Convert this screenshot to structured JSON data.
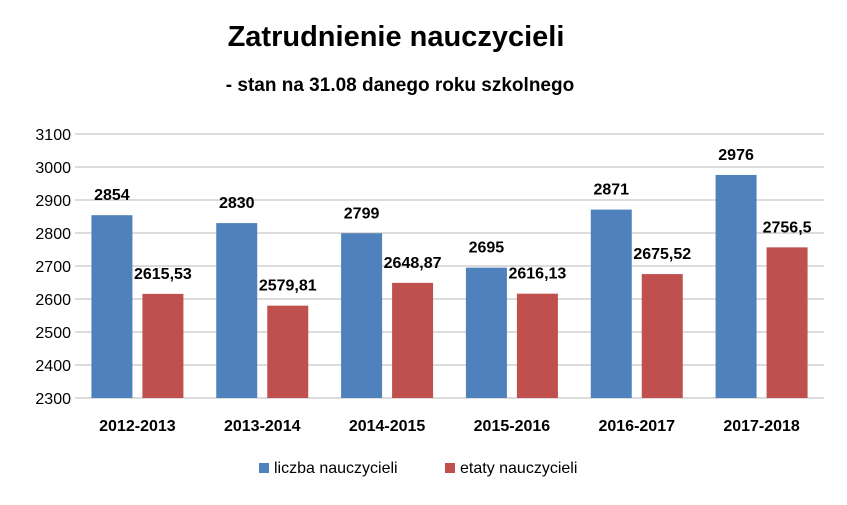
{
  "chart_data": {
    "type": "bar",
    "title": "Zatrudnienie nauczycieli",
    "subtitle": "- stan na 31.08 danego roku szkolnego",
    "categories": [
      "2012-2013",
      "2013-2014",
      "2014-2015",
      "2015-2016",
      "2016-2017",
      "2017-2018"
    ],
    "series": [
      {
        "name": "liczba nauczycieli",
        "color": "#4F81BD",
        "values": [
          2854,
          2830,
          2799,
          2695,
          2871,
          2976
        ],
        "labels": [
          "2854",
          "2830",
          "2799",
          "2695",
          "2871",
          "2976"
        ]
      },
      {
        "name": "etaty nauczycieli",
        "color": "#C0504D",
        "values": [
          2615.53,
          2579.81,
          2648.87,
          2616.13,
          2675.52,
          2756.5
        ],
        "labels": [
          "2615,53",
          "2579,81",
          "2648,87",
          "2616,13",
          "2675,52",
          "2756,5"
        ]
      }
    ],
    "ylim": [
      2300,
      3100
    ],
    "yticks": [
      "2300",
      "2400",
      "2500",
      "2600",
      "2700",
      "2800",
      "2900",
      "3000",
      "3100"
    ],
    "xlabel": "",
    "ylabel": "",
    "grid": true,
    "legend": "bottom"
  }
}
